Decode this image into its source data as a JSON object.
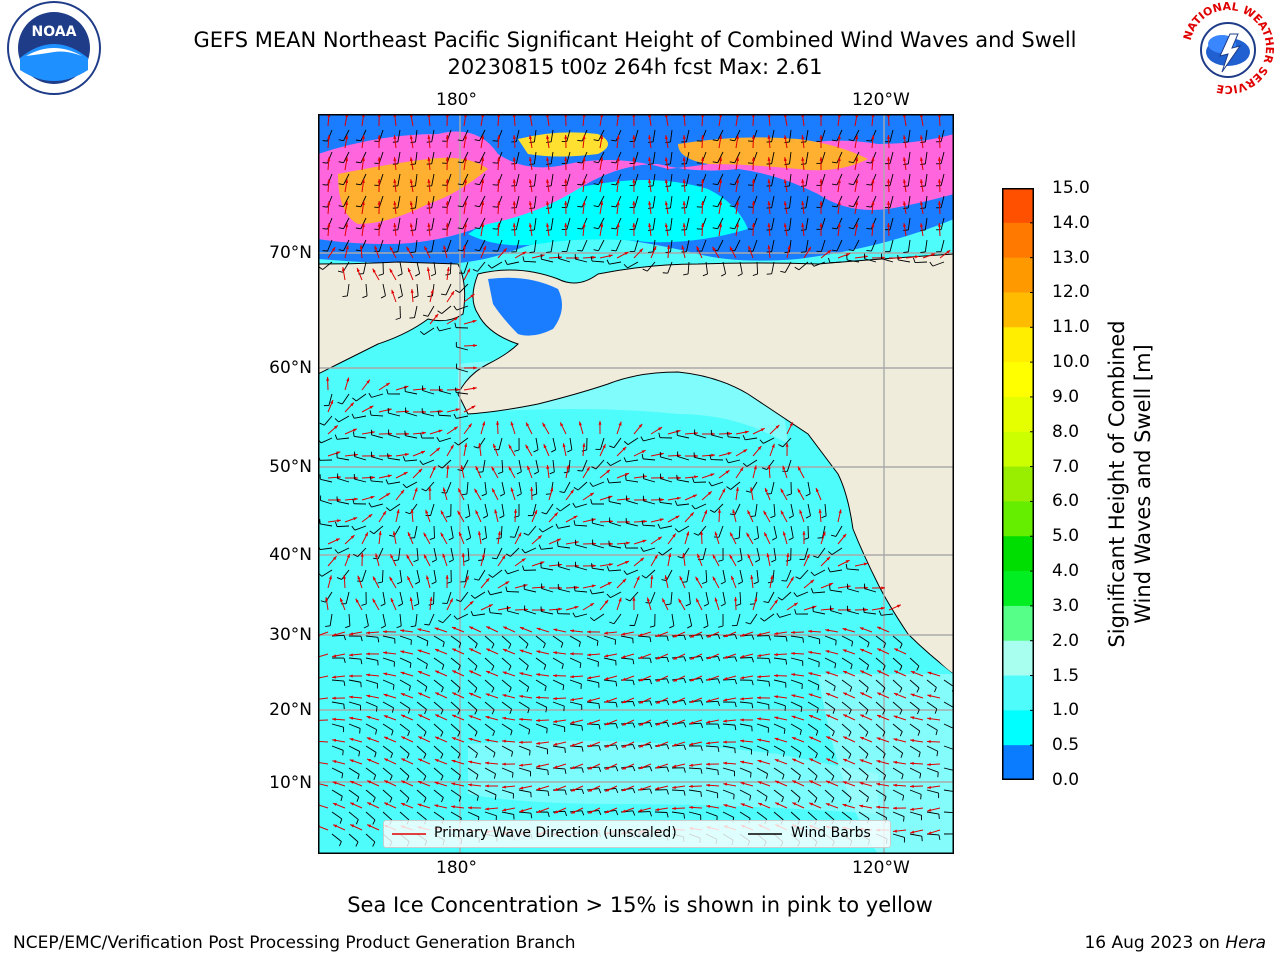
{
  "header": {
    "title_line1": "GEFS MEAN Northeast Pacific Significant Height of Combined Wind Waves and Swell",
    "title_line2": "20230815 t00z 264h fcst   Max: 2.61"
  },
  "map": {
    "lon_labels": [
      "180°",
      "120°W"
    ],
    "lat_labels": [
      "70°N",
      "60°N",
      "50°N",
      "40°N",
      "30°N",
      "20°N",
      "10°N"
    ],
    "colors": {
      "land": "#efecdc",
      "ocean_base": "#4ffcfc",
      "ocean_light": "#a9fcfc",
      "ocean_mid": "#08f0ff",
      "ice_pink": "#ff66dd",
      "ice_orange": "#ffb030",
      "ice_yellow": "#ffe030",
      "deep_blue": "#1a7cff",
      "arrow_red": "#e00000",
      "barb_black": "#000000",
      "grid": "#aaaaaa"
    },
    "legend": {
      "wave_direction": "Primary Wave Direction (unscaled)",
      "wind_barbs": "Wind Barbs"
    }
  },
  "colorbar": {
    "title_line1": "Significant Height of Combined",
    "title_line2": "Wind Waves and Swell [m]",
    "ticks": [
      "15.0",
      "14.0",
      "13.0",
      "12.0",
      "11.0",
      "10.0",
      "9.0",
      "8.0",
      "7.0",
      "6.0",
      "5.0",
      "4.0",
      "3.0",
      "2.0",
      "1.5",
      "1.0",
      "0.5",
      "0.0"
    ],
    "colors_top_to_bottom": [
      "#ff0000",
      "#ff2800",
      "#ff5000",
      "#ff7800",
      "#ff9900",
      "#ffbb00",
      "#ffee00",
      "#ffff00",
      "#e6ff00",
      "#ccff00",
      "#99ee00",
      "#66ee00",
      "#00dd00",
      "#00ee22",
      "#55ff88",
      "#a8fff0",
      "#4ffcfc",
      "#00ffff",
      "#0a7cff",
      "#0000ff"
    ]
  },
  "logos": {
    "noaa": "NOAA",
    "nws_ring": "NATIONAL WEATHER SERVICE"
  },
  "footer": {
    "note": "Sea Ice Concentration > 15% is shown in pink to yellow",
    "left": "NCEP/EMC/Verification Post Processing Product Generation Branch",
    "right_prefix": "16 Aug 2023 on ",
    "right_host": "Hera"
  }
}
